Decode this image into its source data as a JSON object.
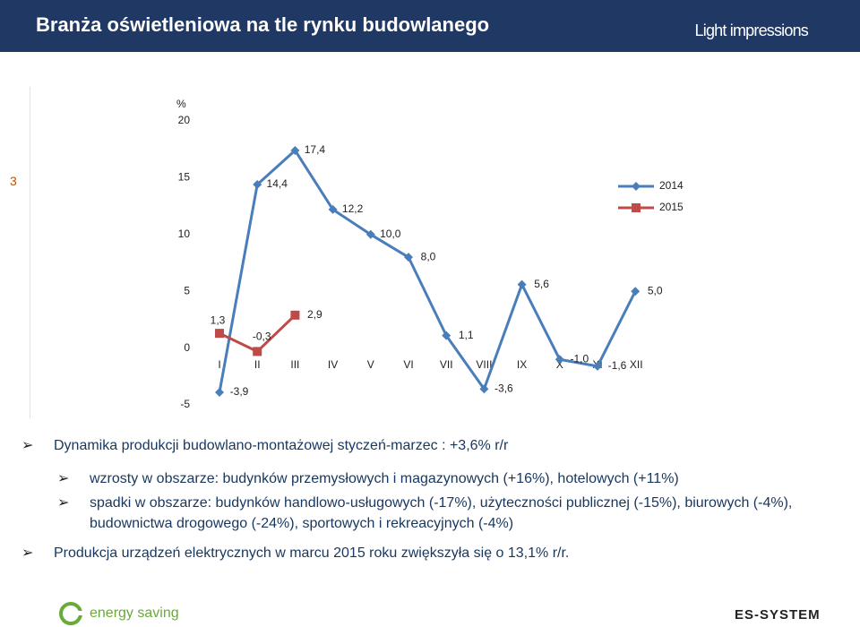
{
  "header": {
    "title": "Branża oświetleniowa na tle rynku budowlanego",
    "brand": "Light impressions"
  },
  "page_number": "3",
  "chart_data": {
    "type": "line",
    "ylabel": "%",
    "categories": [
      "I",
      "II",
      "III",
      "IV",
      "V",
      "VI",
      "VII",
      "VIII",
      "IX",
      "X",
      "XI",
      "XII"
    ],
    "series": [
      {
        "name": "2014",
        "color": "#4a7ebb",
        "marker": "diamond",
        "values": [
          -3.9,
          14.4,
          17.4,
          12.2,
          10.0,
          8.0,
          1.1,
          -3.6,
          5.6,
          -1.0,
          -1.6,
          5.0
        ],
        "value_labels": [
          "-3,9",
          "14,4",
          "17,4",
          "12,2",
          "10,0",
          "8,0",
          "1,1",
          "-3,6",
          "5,6",
          "-1,0",
          "-1,6",
          "5,0"
        ]
      },
      {
        "name": "2015",
        "color": "#be4b48",
        "marker": "square",
        "values": [
          1.3,
          -0.3,
          2.9,
          null,
          null,
          null,
          null,
          null,
          null,
          null,
          null,
          null
        ],
        "value_labels": [
          "1,3",
          "-0,3",
          "2,9",
          null,
          null,
          null,
          null,
          null,
          null,
          null,
          null,
          null
        ]
      }
    ],
    "ylim": [
      -5,
      20
    ],
    "yticks": [
      -5,
      0,
      5,
      10,
      15,
      20
    ],
    "grid": false,
    "legend": "upper right"
  },
  "bullets": [
    {
      "level": 1,
      "text": "Dynamika produkcji budowlano-montażowej styczeń-marzec : +3,6% r/r"
    },
    {
      "level": 2,
      "text": "wzrosty w obszarze: budynków przemysłowych i magazynowych (+16%), hotelowych (+11%)"
    },
    {
      "level": 2,
      "text": "spadki w obszarze: budynków handlowo-usługowych (-17%), użyteczności publicznej (-15%), biurowych (-4%), budownictwa drogowego (-24%), sportowych i rekreacyjnych (-4%)"
    },
    {
      "level": 1,
      "text": "Produkcja urządzeń elektrycznych w marcu 2015 roku zwiększyła się o 13,1% r/r."
    }
  ],
  "footer": {
    "left": "energy saving",
    "right": "ES-SYSTEM"
  }
}
